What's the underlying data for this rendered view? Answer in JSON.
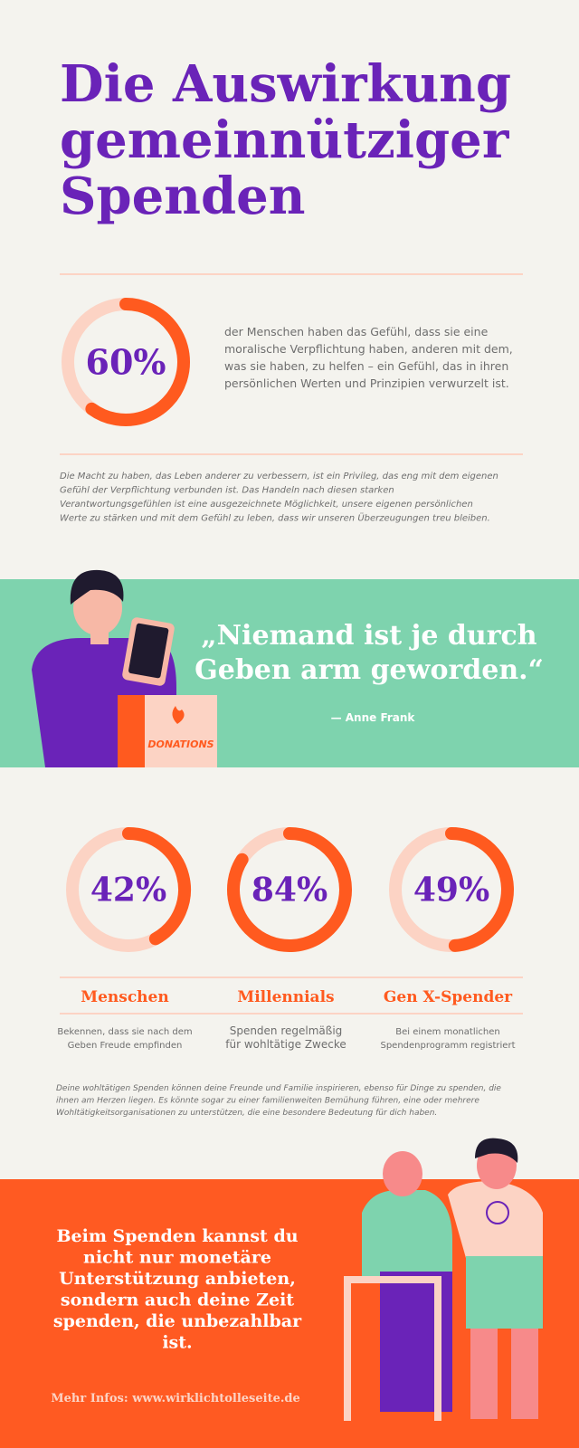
{
  "title": {
    "lines": [
      "Die Auswirkung",
      "gemeinnütziger",
      "Spenden"
    ]
  },
  "intro_stat": {
    "value": 60,
    "label": "60%",
    "text": [
      "der Menschen haben das Gefühl, dass sie eine",
      "moralische Verpflichtung haben, anderen mit dem,",
      "was sie haben, zu helfen – ein Gefühl, das in ihren",
      "persönlichen Werten und Prinzipien verwurzelt ist."
    ]
  },
  "intro_note": [
    "Die Macht zu haben, das Leben anderer zu verbessern, ist ein Privileg, das eng mit dem eigenen",
    "Gefühl der Verpflichtung verbunden ist. Das Handeln nach diesen starken",
    "Verantwortungsgefühlen ist eine ausgezeichnete Möglichkeit, unsere eigenen persönlichen",
    "Werte zu stärken und mit dem Gefühl zu leben, dass wir unseren Überzeugungen treu bleiben."
  ],
  "quote": {
    "lines": [
      "„Niemand ist je durch",
      "Geben arm geworden.“"
    ],
    "author": "— Anne Frank",
    "box_label": "DONATIONS"
  },
  "stats": [
    {
      "value": 42,
      "label": "42%",
      "group": "Menschen",
      "text": [
        "Bekennen, dass sie nach dem",
        "Geben Freude empfinden"
      ]
    },
    {
      "value": 84,
      "label": "84%",
      "group": "Millennials",
      "text": [
        "Spenden regelmäßig",
        "für wohltätige Zwecke"
      ]
    },
    {
      "value": 49,
      "label": "49%",
      "group": "Gen X-Spender",
      "text": [
        "Bei einem monatlichen",
        "Spendenprogramm registriert"
      ]
    }
  ],
  "stats_note": [
    "Deine wohltätigen Spenden können deine Freunde und Familie inspirieren, ebenso für Dinge zu spenden, die",
    "ihnen am Herzen liegen. Es könnte sogar zu einer familienweiten Bemühung führen, eine oder mehrere",
    "Wohltätigkeitsorganisationen zu unterstützen, die eine besondere Bedeutung für dich haben."
  ],
  "footer": {
    "lines": [
      "Beim Spenden kannst du",
      "nicht nur monetäre",
      "Unterstützung anbieten,",
      "sondern auch deine Zeit",
      "spenden, die unbezahlbar",
      "ist."
    ],
    "link": "Mehr Infos: www.wirklichtolleseite.de"
  }
}
